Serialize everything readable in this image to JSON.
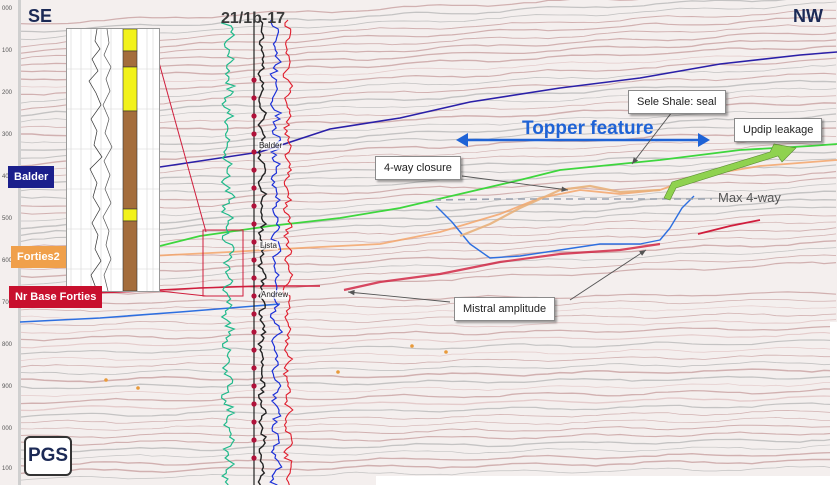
{
  "corners": {
    "left": "SE",
    "right": "NW"
  },
  "well": {
    "name": "21/1b-17",
    "markers": [
      "Balder",
      "Lista",
      "Andrew"
    ]
  },
  "horizon_labels": [
    {
      "text": "Balder",
      "color": "#1b1f8c"
    },
    {
      "text": "Forties2",
      "color": "#f0a04b"
    },
    {
      "text": "Nr Base Forties",
      "color": "#c8102e"
    }
  ],
  "title": "Topper feature",
  "callouts": {
    "sele": "Sele Shale: seal",
    "updip": "Updip leakage",
    "closure": "4-way closure",
    "mistral": "Mistral amplitude"
  },
  "max_four_way": "Max 4-way",
  "logo": "PGS",
  "colors": {
    "balder": "#2a1fa8",
    "forties": "#f3a56a",
    "base_forties": "#d01d3c",
    "green_horizon": "#3ed63e",
    "blue_horizon": "#2d6fe0",
    "topper": "#1f63d6",
    "updip": "#8fd24f"
  }
}
